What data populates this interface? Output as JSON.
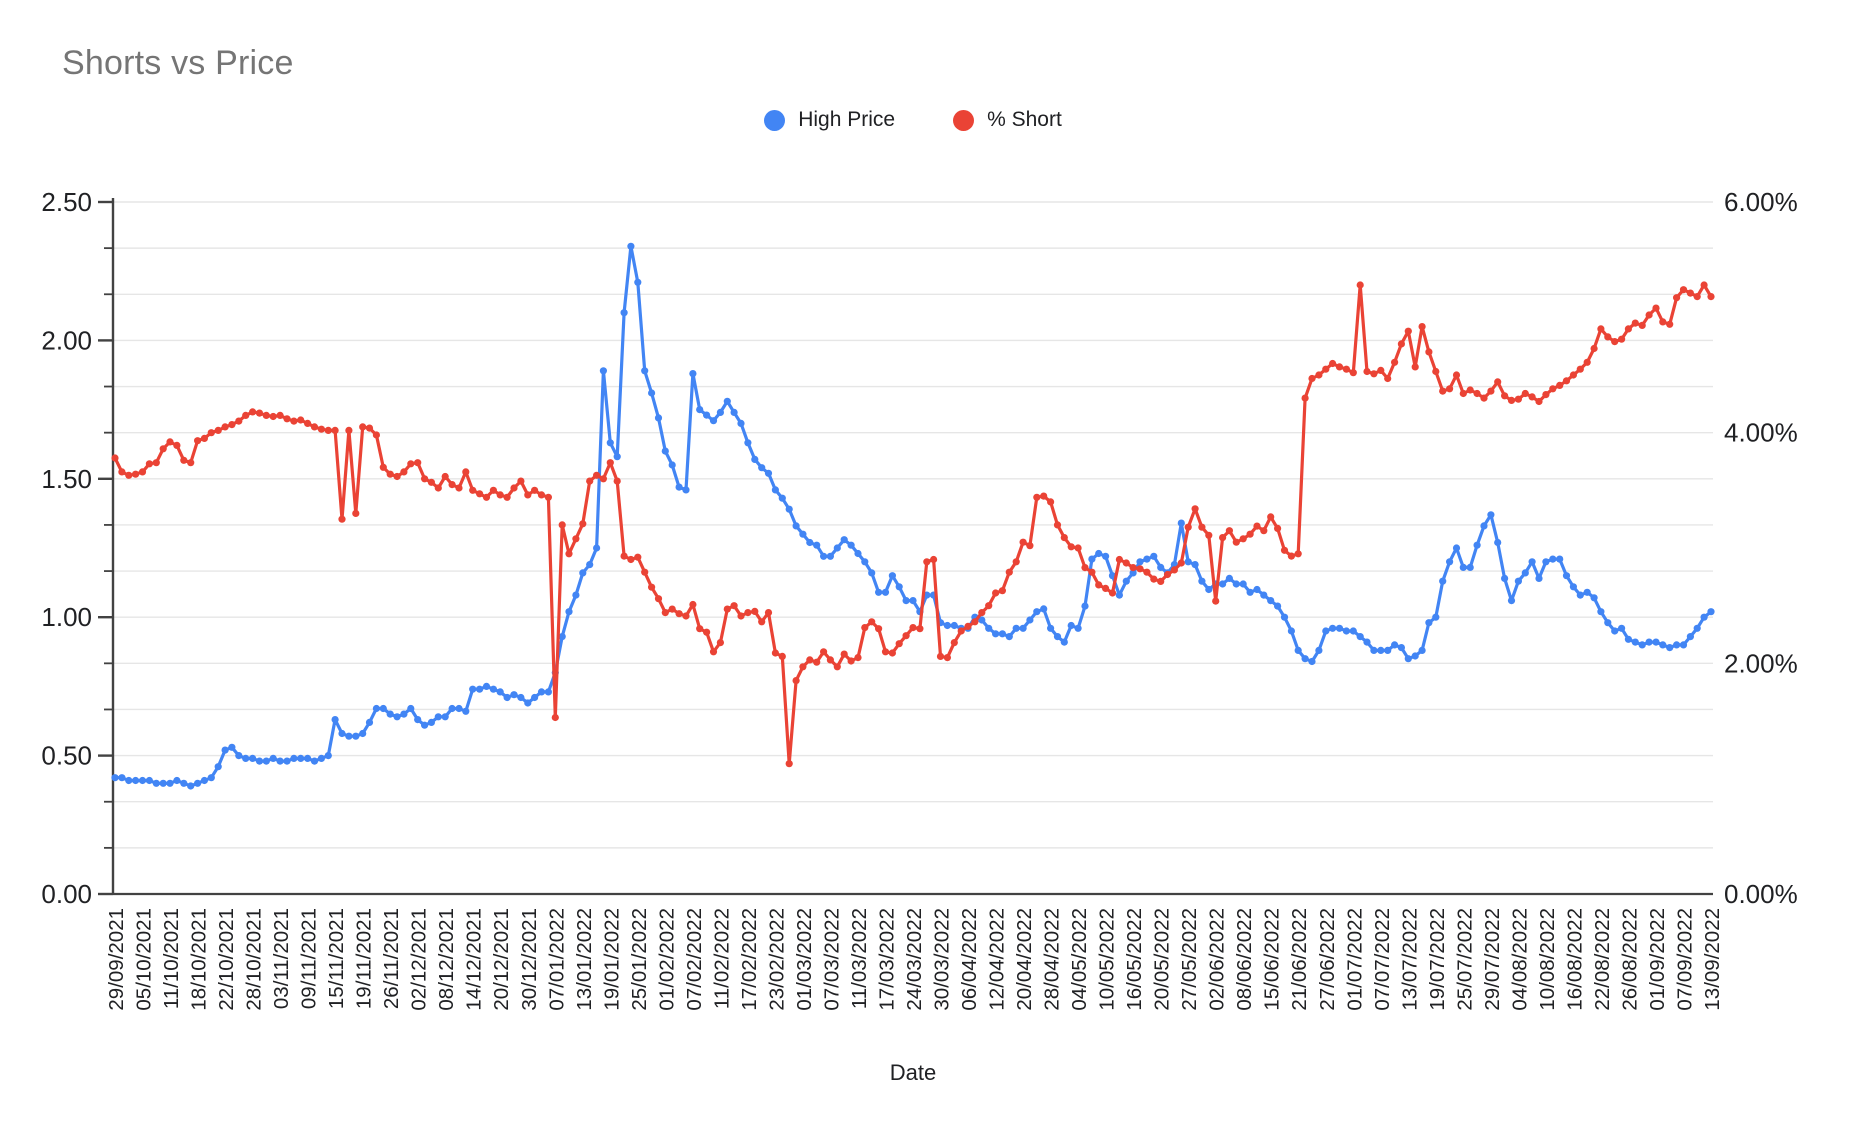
{
  "title": "Shorts vs Price",
  "legend": [
    {
      "label": "High Price",
      "color": "#4285f4"
    },
    {
      "label": "% Short",
      "color": "#ea4335"
    }
  ],
  "chart_data": {
    "type": "line",
    "title": "Shorts vs Price",
    "xlabel": "Date",
    "background_color": "#ffffff",
    "grid_color": "#e6e6e6",
    "axis_line_color": "#424242",
    "tick_text_color": "#202124",
    "legend_position": "top-center",
    "markers": true,
    "points_per_tick": 4,
    "left_axis": {
      "min": 0,
      "max": 2.5,
      "tick_step": 0.5,
      "minor_per_major": 3,
      "ticks": [
        "0.00",
        "0.50",
        "1.00",
        "1.50",
        "2.00",
        "2.50"
      ]
    },
    "right_axis": {
      "min": 0,
      "max": 6,
      "tick_step": 2,
      "ticks": [
        "0.00%",
        "2.00%",
        "4.00%",
        "6.00%"
      ]
    },
    "x_tick_labels": [
      "29/09/2021",
      "05/10/2021",
      "11/10/2021",
      "18/10/2021",
      "22/10/2021",
      "28/10/2021",
      "03/11/2021",
      "09/11/2021",
      "15/11/2021",
      "19/11/2021",
      "26/11/2021",
      "02/12/2021",
      "08/12/2021",
      "14/12/2021",
      "20/12/2021",
      "30/12/2021",
      "07/01/2022",
      "13/01/2022",
      "19/01/2022",
      "25/01/2022",
      "01/02/2022",
      "07/02/2022",
      "11/02/2022",
      "17/02/2022",
      "23/02/2022",
      "01/03/2022",
      "07/03/2022",
      "11/03/2022",
      "17/03/2022",
      "24/03/2022",
      "30/03/2022",
      "06/04/2022",
      "12/04/2022",
      "20/04/2022",
      "28/04/2022",
      "04/05/2022",
      "10/05/2022",
      "16/05/2022",
      "20/05/2022",
      "27/05/2022",
      "02/06/2022",
      "08/06/2022",
      "15/06/2022",
      "21/06/2022",
      "27/06/2022",
      "01/07/2022",
      "07/07/2022",
      "13/07/2022",
      "19/07/2022",
      "25/07/2022",
      "29/07/2022",
      "04/08/2022",
      "10/08/2022",
      "16/08/2022",
      "22/08/2022",
      "26/08/2022",
      "01/09/2022",
      "07/09/2022",
      "13/09/2022"
    ],
    "series": [
      {
        "name": "High Price",
        "axis": "left",
        "color": "#4285f4",
        "values": [
          0.42,
          0.42,
          0.41,
          0.41,
          0.41,
          0.41,
          0.4,
          0.4,
          0.4,
          0.41,
          0.4,
          0.39,
          0.4,
          0.41,
          0.42,
          0.46,
          0.52,
          0.53,
          0.5,
          0.49,
          0.49,
          0.48,
          0.48,
          0.49,
          0.48,
          0.48,
          0.49,
          0.49,
          0.49,
          0.48,
          0.49,
          0.5,
          0.63,
          0.58,
          0.57,
          0.57,
          0.58,
          0.62,
          0.67,
          0.67,
          0.65,
          0.64,
          0.65,
          0.67,
          0.63,
          0.61,
          0.62,
          0.64,
          0.64,
          0.67,
          0.67,
          0.66,
          0.74,
          0.74,
          0.75,
          0.74,
          0.73,
          0.71,
          0.72,
          0.71,
          0.69,
          0.71,
          0.73,
          0.73,
          0.8,
          0.93,
          1.02,
          1.08,
          1.16,
          1.19,
          1.25,
          1.89,
          1.63,
          1.58,
          2.1,
          2.34,
          2.21,
          1.89,
          1.81,
          1.72,
          1.6,
          1.55,
          1.47,
          1.46,
          1.88,
          1.75,
          1.73,
          1.71,
          1.74,
          1.78,
          1.74,
          1.7,
          1.63,
          1.57,
          1.54,
          1.52,
          1.46,
          1.43,
          1.39,
          1.33,
          1.3,
          1.27,
          1.26,
          1.22,
          1.22,
          1.25,
          1.28,
          1.26,
          1.23,
          1.2,
          1.16,
          1.09,
          1.09,
          1.15,
          1.11,
          1.06,
          1.06,
          1.02,
          1.08,
          1.08,
          0.98,
          0.97,
          0.97,
          0.96,
          0.96,
          1.0,
          0.99,
          0.96,
          0.94,
          0.94,
          0.93,
          0.96,
          0.96,
          0.99,
          1.02,
          1.03,
          0.96,
          0.93,
          0.91,
          0.97,
          0.96,
          1.04,
          1.21,
          1.23,
          1.22,
          1.15,
          1.08,
          1.13,
          1.16,
          1.2,
          1.21,
          1.22,
          1.18,
          1.16,
          1.19,
          1.34,
          1.2,
          1.19,
          1.13,
          1.1,
          1.12,
          1.12,
          1.14,
          1.12,
          1.12,
          1.09,
          1.1,
          1.08,
          1.06,
          1.04,
          1.0,
          0.95,
          0.88,
          0.85,
          0.84,
          0.88,
          0.95,
          0.96,
          0.96,
          0.95,
          0.95,
          0.93,
          0.91,
          0.88,
          0.88,
          0.88,
          0.9,
          0.89,
          0.85,
          0.86,
          0.88,
          0.98,
          1.0,
          1.13,
          1.2,
          1.25,
          1.18,
          1.18,
          1.26,
          1.33,
          1.37,
          1.27,
          1.14,
          1.06,
          1.13,
          1.16,
          1.2,
          1.14,
          1.2,
          1.21,
          1.21,
          1.15,
          1.11,
          1.08,
          1.09,
          1.07,
          1.02,
          0.98,
          0.95,
          0.96,
          0.92,
          0.91,
          0.9,
          0.91,
          0.91,
          0.9,
          0.89,
          0.9,
          0.9,
          0.93,
          0.96,
          1.0,
          1.02
        ]
      },
      {
        "name": "% Short",
        "axis": "right",
        "color": "#ea4335",
        "values": [
          3.78,
          3.66,
          3.63,
          3.64,
          3.66,
          3.73,
          3.74,
          3.86,
          3.92,
          3.89,
          3.76,
          3.74,
          3.93,
          3.95,
          4.0,
          4.02,
          4.05,
          4.07,
          4.1,
          4.15,
          4.18,
          4.17,
          4.15,
          4.14,
          4.15,
          4.12,
          4.1,
          4.11,
          4.08,
          4.05,
          4.03,
          4.02,
          4.02,
          3.25,
          4.02,
          3.3,
          4.05,
          4.04,
          3.98,
          3.7,
          3.64,
          3.62,
          3.66,
          3.73,
          3.74,
          3.6,
          3.57,
          3.52,
          3.62,
          3.55,
          3.52,
          3.66,
          3.5,
          3.47,
          3.44,
          3.5,
          3.46,
          3.44,
          3.52,
          3.58,
          3.46,
          3.5,
          3.46,
          3.44,
          1.53,
          3.2,
          2.95,
          3.08,
          3.21,
          3.58,
          3.63,
          3.6,
          3.74,
          3.58,
          2.93,
          2.9,
          2.92,
          2.79,
          2.66,
          2.56,
          2.44,
          2.47,
          2.43,
          2.41,
          2.51,
          2.3,
          2.27,
          2.1,
          2.18,
          2.47,
          2.5,
          2.41,
          2.44,
          2.45,
          2.36,
          2.44,
          2.09,
          2.06,
          1.13,
          1.85,
          1.97,
          2.03,
          2.01,
          2.1,
          2.03,
          1.97,
          2.08,
          2.02,
          2.05,
          2.31,
          2.36,
          2.3,
          2.1,
          2.09,
          2.17,
          2.24,
          2.31,
          2.3,
          2.88,
          2.9,
          2.06,
          2.05,
          2.18,
          2.28,
          2.32,
          2.36,
          2.44,
          2.5,
          2.61,
          2.63,
          2.79,
          2.88,
          3.05,
          3.02,
          3.44,
          3.45,
          3.4,
          3.2,
          3.09,
          3.01,
          3.0,
          2.83,
          2.79,
          2.68,
          2.65,
          2.61,
          2.9,
          2.87,
          2.83,
          2.82,
          2.79,
          2.73,
          2.71,
          2.77,
          2.81,
          2.87,
          3.18,
          3.34,
          3.18,
          3.11,
          2.54,
          3.09,
          3.15,
          3.05,
          3.08,
          3.12,
          3.19,
          3.15,
          3.27,
          3.17,
          2.98,
          2.93,
          2.95,
          4.3,
          4.47,
          4.5,
          4.55,
          4.6,
          4.57,
          4.55,
          4.52,
          5.28,
          4.53,
          4.51,
          4.54,
          4.47,
          4.61,
          4.77,
          4.88,
          4.57,
          4.92,
          4.7,
          4.53,
          4.36,
          4.38,
          4.5,
          4.34,
          4.37,
          4.34,
          4.3,
          4.36,
          4.44,
          4.32,
          4.28,
          4.29,
          4.34,
          4.31,
          4.27,
          4.33,
          4.38,
          4.41,
          4.45,
          4.5,
          4.55,
          4.61,
          4.73,
          4.9,
          4.83,
          4.79,
          4.81,
          4.9,
          4.95,
          4.93,
          5.02,
          5.08,
          4.96,
          4.94,
          5.17,
          5.24,
          5.21,
          5.18,
          5.28,
          5.18
        ]
      }
    ]
  }
}
